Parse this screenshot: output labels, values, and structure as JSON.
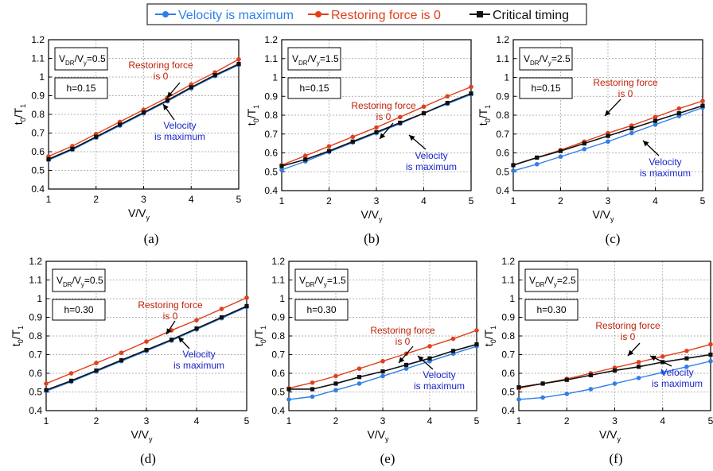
{
  "legend": [
    {
      "label": "Velocity is maximum",
      "color": "#2f7fe6",
      "marker": "circle"
    },
    {
      "label": "Restoring force is 0",
      "color": "#e0401c",
      "marker": "circle"
    },
    {
      "label": "Critical timing",
      "color": "#111111",
      "marker": "square"
    }
  ],
  "axis_labels": {
    "y_main": "t",
    "y_sub0": "0",
    "y_slash": "/T",
    "y_sub1": "1",
    "x_main": "V/V",
    "x_sub": "y"
  },
  "box_labels": {
    "v": "V",
    "dr": "DR",
    "slash": "/V",
    "y": "y"
  },
  "annotations": {
    "restoring_line1": "Restoring force",
    "restoring_line2": "is 0",
    "velocity_line1": "Velocity",
    "velocity_line2": "is maximum"
  },
  "chart_data": [
    {
      "type": "line",
      "panel_label": "(a)",
      "ratio": "=0.5",
      "damping": "h=0.15",
      "x": [
        1,
        1.5,
        2,
        2.5,
        3,
        3.5,
        4,
        4.5,
        5
      ],
      "xlim": [
        1,
        5
      ],
      "ylim": [
        0.4,
        1.2
      ],
      "xticks": [
        "1",
        "2",
        "3",
        "4",
        "5"
      ],
      "yticks": [
        "0.4",
        "0.5",
        "0.6",
        "0.7",
        "0.8",
        "0.9",
        "1",
        "1.1",
        "1.2"
      ],
      "series": [
        {
          "name": "Velocity is maximum",
          "values": [
            0.555,
            0.61,
            0.675,
            0.74,
            0.805,
            0.87,
            0.94,
            1.005,
            1.065
          ]
        },
        {
          "name": "Restoring force is 0",
          "values": [
            0.575,
            0.63,
            0.695,
            0.76,
            0.825,
            0.89,
            0.96,
            1.025,
            1.095
          ]
        },
        {
          "name": "Critical timing",
          "values": [
            0.56,
            0.615,
            0.68,
            0.745,
            0.81,
            0.875,
            0.945,
            1.01,
            1.07
          ]
        }
      ]
    },
    {
      "type": "line",
      "panel_label": "(b)",
      "ratio": "=1.5",
      "damping": "h=0.15",
      "x": [
        1,
        1.5,
        2,
        2.5,
        3,
        3.5,
        4,
        4.5,
        5
      ],
      "xlim": [
        1,
        5
      ],
      "ylim": [
        0.4,
        1.2
      ],
      "xticks": [
        "1",
        "2",
        "3",
        "4",
        "5"
      ],
      "yticks": [
        "0.4",
        "0.5",
        "0.6",
        "0.7",
        "0.8",
        "0.9",
        "1",
        "1.1",
        "1.2"
      ],
      "series": [
        {
          "name": "Velocity is maximum",
          "values": [
            0.51,
            0.555,
            0.605,
            0.655,
            0.705,
            0.755,
            0.81,
            0.86,
            0.91
          ]
        },
        {
          "name": "Restoring force is 0",
          "values": [
            0.535,
            0.585,
            0.635,
            0.685,
            0.735,
            0.79,
            0.845,
            0.9,
            0.95
          ]
        },
        {
          "name": "Critical timing",
          "values": [
            0.53,
            0.565,
            0.61,
            0.66,
            0.71,
            0.76,
            0.81,
            0.865,
            0.915
          ]
        }
      ]
    },
    {
      "type": "line",
      "panel_label": "(c)",
      "ratio": "=2.5",
      "damping": "h=0.15",
      "x": [
        1,
        1.5,
        2,
        2.5,
        3,
        3.5,
        4,
        4.5,
        5
      ],
      "xlim": [
        1,
        5
      ],
      "ylim": [
        0.4,
        1.2
      ],
      "xticks": [
        "1",
        "2",
        "3",
        "4",
        "5"
      ],
      "yticks": [
        "0.4",
        "0.5",
        "0.6",
        "0.7",
        "0.8",
        "0.9",
        "1",
        "1.1",
        "1.2"
      ],
      "series": [
        {
          "name": "Velocity is maximum",
          "values": [
            0.505,
            0.54,
            0.58,
            0.62,
            0.66,
            0.705,
            0.75,
            0.795,
            0.84
          ]
        },
        {
          "name": "Restoring force is 0",
          "values": [
            0.535,
            0.575,
            0.615,
            0.66,
            0.705,
            0.745,
            0.79,
            0.835,
            0.875
          ]
        },
        {
          "name": "Critical timing",
          "values": [
            0.535,
            0.575,
            0.61,
            0.65,
            0.69,
            0.73,
            0.77,
            0.81,
            0.85
          ]
        }
      ]
    },
    {
      "type": "line",
      "panel_label": "(d)",
      "ratio": "=0.5",
      "damping": "h=0.30",
      "x": [
        1,
        1.5,
        2,
        2.5,
        3,
        3.5,
        4,
        4.5,
        5
      ],
      "xlim": [
        1,
        5
      ],
      "ylim": [
        0.4,
        1.2
      ],
      "xticks": [
        "1",
        "2",
        "3",
        "4",
        "5"
      ],
      "yticks": [
        "0.4",
        "0.5",
        "0.6",
        "0.7",
        "0.8",
        "0.9",
        "1",
        "1.1",
        "1.2"
      ],
      "series": [
        {
          "name": "Velocity is maximum",
          "values": [
            0.505,
            0.555,
            0.61,
            0.665,
            0.72,
            0.775,
            0.835,
            0.895,
            0.955
          ]
        },
        {
          "name": "Restoring force is 0",
          "values": [
            0.545,
            0.6,
            0.655,
            0.71,
            0.77,
            0.83,
            0.885,
            0.945,
            1.005
          ]
        },
        {
          "name": "Critical timing",
          "values": [
            0.51,
            0.56,
            0.615,
            0.67,
            0.725,
            0.78,
            0.84,
            0.9,
            0.96
          ]
        }
      ]
    },
    {
      "type": "line",
      "panel_label": "(e)",
      "ratio": "=1.5",
      "damping": "h=0.30",
      "x": [
        1,
        1.5,
        2,
        2.5,
        3,
        3.5,
        4,
        4.5,
        5
      ],
      "xlim": [
        1,
        5
      ],
      "ylim": [
        0.4,
        1.2
      ],
      "xticks": [
        "1",
        "2",
        "3",
        "4",
        "5"
      ],
      "yticks": [
        "0.4",
        "0.5",
        "0.6",
        "0.7",
        "0.8",
        "0.9",
        "1",
        "1.1",
        "1.2"
      ],
      "series": [
        {
          "name": "Velocity is maximum",
          "values": [
            0.46,
            0.475,
            0.51,
            0.545,
            0.585,
            0.625,
            0.665,
            0.705,
            0.745
          ]
        },
        {
          "name": "Restoring force is 0",
          "values": [
            0.52,
            0.55,
            0.585,
            0.625,
            0.665,
            0.705,
            0.745,
            0.785,
            0.83
          ]
        },
        {
          "name": "Critical timing",
          "values": [
            0.515,
            0.515,
            0.545,
            0.58,
            0.61,
            0.645,
            0.68,
            0.72,
            0.755
          ]
        }
      ]
    },
    {
      "type": "line",
      "panel_label": "(f)",
      "ratio": "=2.5",
      "damping": "h=0.30",
      "x": [
        1,
        1.5,
        2,
        2.5,
        3,
        3.5,
        4,
        4.5,
        5
      ],
      "xlim": [
        1,
        5
      ],
      "ylim": [
        0.4,
        1.2
      ],
      "xticks": [
        "1",
        "2",
        "3",
        "4",
        "5"
      ],
      "yticks": [
        "0.4",
        "0.5",
        "0.6",
        "0.7",
        "0.8",
        "0.9",
        "1",
        "1.1",
        "1.2"
      ],
      "series": [
        {
          "name": "Velocity is maximum",
          "values": [
            0.46,
            0.47,
            0.49,
            0.515,
            0.545,
            0.575,
            0.605,
            0.635,
            0.665
          ]
        },
        {
          "name": "Restoring force is 0",
          "values": [
            0.52,
            0.545,
            0.57,
            0.6,
            0.63,
            0.66,
            0.69,
            0.72,
            0.755
          ]
        },
        {
          "name": "Critical timing",
          "values": [
            0.525,
            0.545,
            0.565,
            0.59,
            0.615,
            0.635,
            0.66,
            0.68,
            0.7
          ]
        }
      ]
    }
  ]
}
